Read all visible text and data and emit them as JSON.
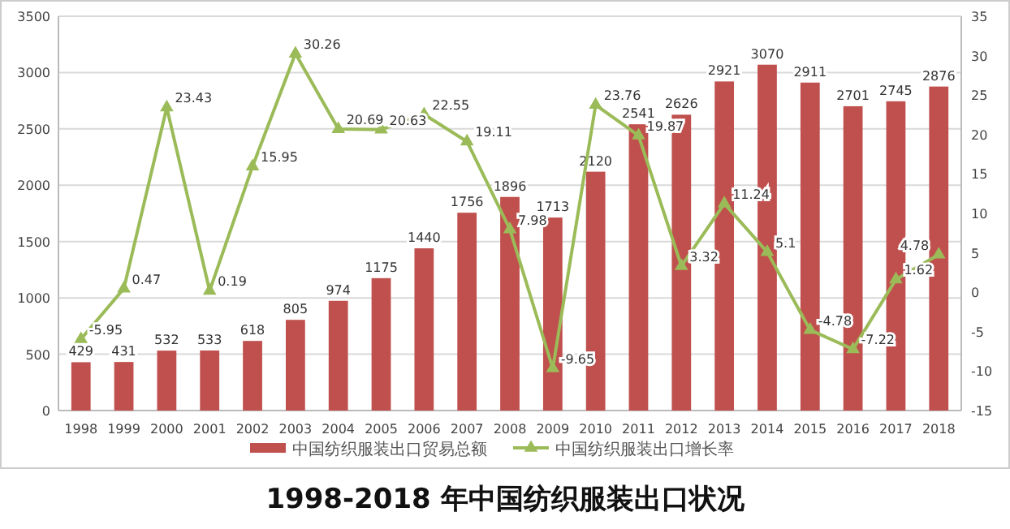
{
  "chart_data": {
    "type": "bar",
    "title": "1998-2018 年中国纺织服装出口状况",
    "categories": [
      "1998",
      "1999",
      "2000",
      "2001",
      "2002",
      "2003",
      "2004",
      "2005",
      "2006",
      "2007",
      "2008",
      "2009",
      "2010",
      "2011",
      "2012",
      "2013",
      "2014",
      "2015",
      "2016",
      "2017",
      "2018"
    ],
    "series": [
      {
        "name": "中国纺织服装出口贸易总额",
        "color": "#c0504d",
        "values": [
          429,
          431,
          532,
          533,
          618,
          805,
          974,
          1175,
          1440,
          1756,
          1896,
          1713,
          2120,
          2541,
          2626,
          2921,
          3070,
          2911,
          2701,
          2745,
          2876
        ]
      },
      {
        "name": "中国纺织服装出口增长率",
        "type": "line",
        "axis": "y2",
        "color": "#9bbb59",
        "marker": "triangle",
        "values": [
          -5.95,
          0.47,
          23.43,
          0.19,
          15.95,
          30.26,
          20.69,
          20.63,
          22.55,
          19.11,
          7.98,
          -9.65,
          23.76,
          19.87,
          3.32,
          11.24,
          5.1,
          -4.78,
          -7.22,
          1.62,
          4.78
        ]
      }
    ],
    "ylim": [
      0,
      3500
    ],
    "yticks": [
      0,
      500,
      1000,
      1500,
      2000,
      2500,
      3000,
      3500
    ],
    "y2lim": [
      -15,
      35
    ],
    "y2ticks": [
      -15,
      -10,
      -5,
      0,
      5,
      10,
      15,
      20,
      25,
      30,
      35
    ],
    "grid": "y",
    "legend": "bottom",
    "data_labels": true
  }
}
